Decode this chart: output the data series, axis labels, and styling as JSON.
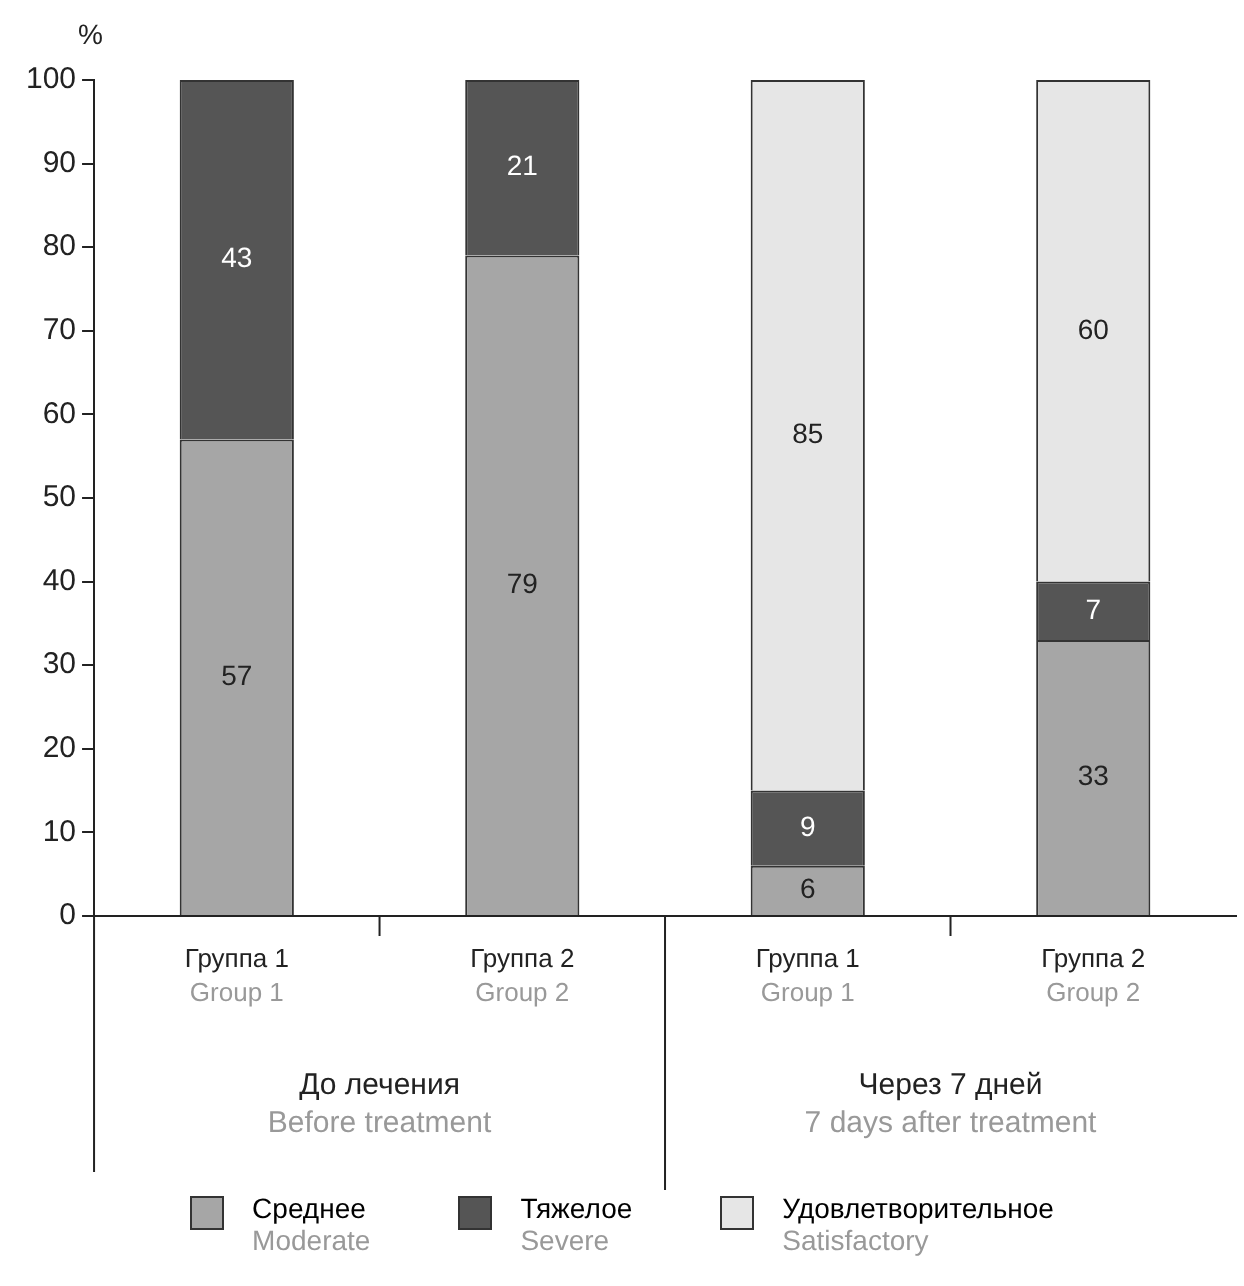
{
  "chart_data": {
    "type": "bar",
    "stacked": true,
    "ylabel": "%",
    "categories": [
      "Группа 1\nGroup 1",
      "Группа 2\nGroup 2",
      "Группа 1\nGroup 1",
      "Группа 2\nGroup 2"
    ],
    "series": [
      {
        "name": "Среднее\nModerate",
        "color": "#a6a6a6",
        "values": [
          57,
          79,
          6,
          33
        ]
      },
      {
        "name": "Тяжелое\nSevere",
        "color": "#555555",
        "values": [
          43,
          21,
          9,
          7
        ]
      },
      {
        "name": "Удовлетворительное\nSatisfactory",
        "color": "#e6e6e6",
        "values": [
          null,
          null,
          85,
          60
        ]
      }
    ],
    "ylim": [
      0,
      100
    ],
    "yticks": [
      0,
      10,
      20,
      30,
      40,
      50,
      60,
      70,
      80,
      90,
      100
    ],
    "grid": false,
    "data_labels": true,
    "legend": "bottom",
    "annotations": [
      "До лечения\nBefore treatment",
      "Через 7 дней\n7 days after treatment"
    ]
  }
}
